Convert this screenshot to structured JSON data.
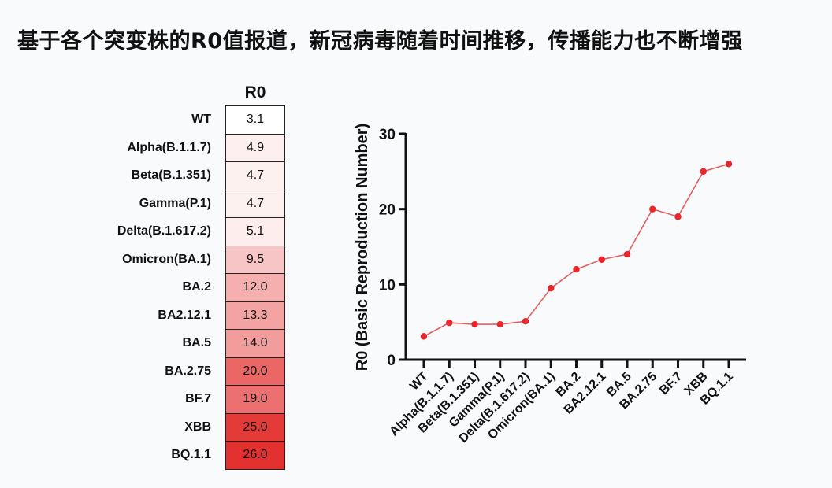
{
  "title": "基于各个突变株的R0值报道，新冠病毒随着时间推移，传播能力也不断增强",
  "chart_data": [
    {
      "type": "heatmap",
      "header": "R0",
      "categories": [
        "WT",
        "Alpha(B.1.1.7)",
        "Beta(B.1.351)",
        "Gamma(P.1)",
        "Delta(B.1.617.2)",
        "Omicron(BA.1)",
        "BA.2",
        "BA2.12.1",
        "BA.5",
        "BA.2.75",
        "BF.7",
        "XBB",
        "BQ.1.1"
      ],
      "values": [
        3.1,
        4.9,
        4.7,
        4.7,
        5.1,
        9.5,
        12.0,
        13.3,
        14.0,
        20.0,
        19.0,
        25.0,
        26.0
      ],
      "labels": [
        "3.1",
        "4.9",
        "4.7",
        "4.7",
        "5.1",
        "9.5",
        "12.0",
        "13.3",
        "14.0",
        "20.0",
        "19.0",
        "25.0",
        "26.0"
      ],
      "color_low": "#ffffff",
      "color_high": "#e3312f"
    },
    {
      "type": "line",
      "categories": [
        "WT",
        "Alpha(B.1.1.7)",
        "Beta(B.1.351)",
        "Gamma(P.1)",
        "Delta(B.1.617.2)",
        "Omicron(BA.1)",
        "BA.2",
        "BA2.12.1",
        "BA.5",
        "BA.2.75",
        "BF.7",
        "XBB",
        "BQ.1.1"
      ],
      "values": [
        3.1,
        4.9,
        4.7,
        4.7,
        5.1,
        9.5,
        12.0,
        13.3,
        14.0,
        20.0,
        19.0,
        25.0,
        26.0
      ],
      "xlabel": "",
      "ylabel": "R0 (Basic Reproduction Number)",
      "ylim": [
        0,
        30
      ],
      "yticks": [
        0,
        10,
        20,
        30
      ],
      "grid": false,
      "line_color": "#e06060",
      "marker_color": "#e8262b"
    }
  ]
}
